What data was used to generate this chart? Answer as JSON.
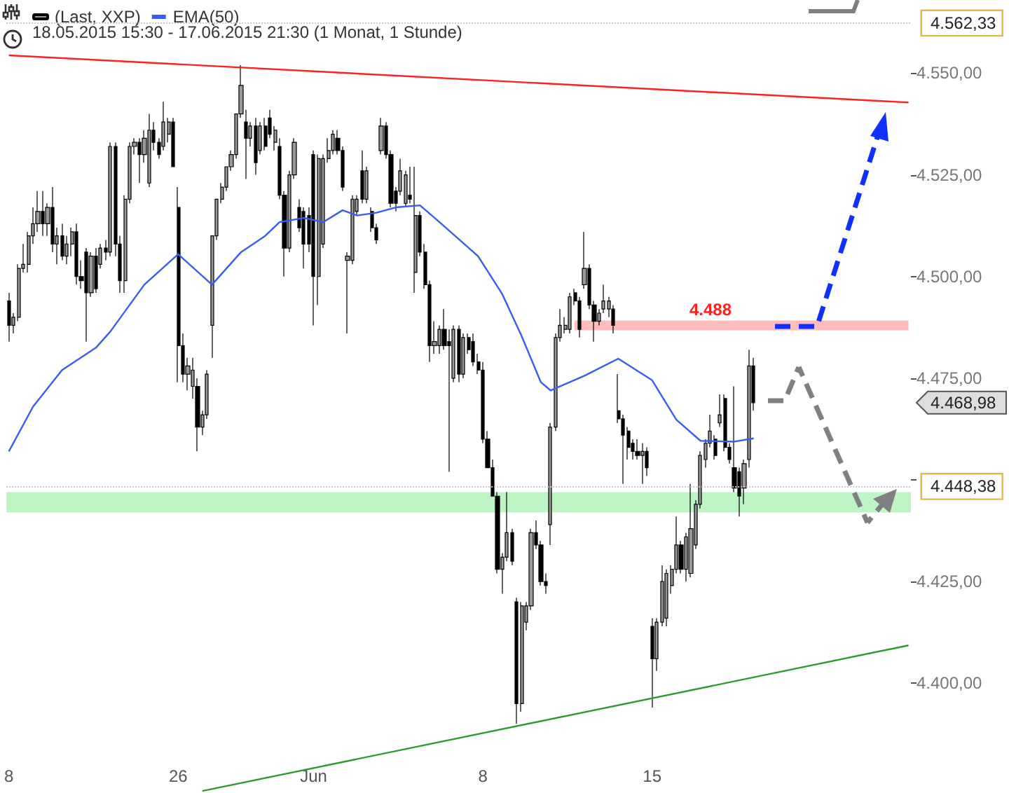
{
  "chart_data": {
    "type": "candlestick",
    "subtitle": "18.05.2015 15:30 - 17.06.2015 21:30 (1 Monat, 1 Stunde)",
    "categories": [
      "8",
      null,
      null,
      null,
      null,
      null,
      null,
      null,
      null,
      null,
      null,
      null,
      null,
      null,
      null,
      null,
      null,
      null,
      null,
      null,
      null,
      null,
      null,
      null,
      null,
      null,
      null,
      null,
      null,
      null,
      null,
      null,
      null,
      null,
      null,
      "26",
      null,
      null,
      null,
      null,
      null,
      null,
      null,
      null,
      null,
      null,
      null,
      null,
      null,
      null,
      null,
      null,
      null,
      null,
      null,
      null,
      null,
      null,
      null,
      null,
      null,
      null,
      null,
      "Jun",
      null,
      null,
      null,
      null,
      null,
      null,
      null,
      null,
      null,
      null,
      null,
      null,
      null,
      null,
      null,
      null,
      null,
      null,
      null,
      null,
      null,
      null,
      null,
      null,
      null,
      null,
      null,
      null,
      null,
      null,
      null,
      null,
      null,
      null,
      "8",
      null,
      null,
      null,
      null,
      null,
      null,
      null,
      null,
      null,
      null,
      null,
      null,
      null,
      null,
      null,
      null,
      null,
      null,
      null,
      null,
      null,
      null,
      null,
      null,
      null,
      null,
      null,
      null,
      null,
      null,
      null,
      null,
      null,
      null,
      "15",
      null,
      null,
      null,
      null,
      null,
      null,
      null,
      null,
      null,
      null,
      null,
      null,
      null,
      null,
      null,
      null,
      null,
      null,
      null,
      null,
      null,
      null,
      null,
      null,
      null,
      null,
      null,
      null,
      null,
      null,
      null,
      null,
      null,
      null,
      null,
      null,
      null,
      null,
      null,
      null,
      null,
      null,
      null,
      null,
      null,
      null,
      null,
      null,
      null,
      null,
      null,
      null,
      null
    ],
    "ylim": [
      4373,
      4568
    ],
    "yticks": [
      {
        "value": 4400,
        "label": "4.400,00"
      },
      {
        "value": 4425,
        "label": "4.425,00"
      },
      {
        "value": 4450,
        "label": null
      },
      {
        "value": 4475,
        "label": "4.475,00"
      },
      {
        "value": 4500,
        "label": "4.500,00"
      },
      {
        "value": 4525,
        "label": "4.525,00"
      },
      {
        "value": 4550,
        "label": "4.550,00"
      }
    ],
    "grid": false,
    "legend": "top left",
    "marker": "none",
    "series": [
      {
        "name": "(Last, XXP)",
        "color": "#000000",
        "ohlc": [
          [
            4494,
            4496,
            4484,
            4488
          ],
          [
            4488,
            4491,
            4486,
            4490
          ],
          [
            4490,
            4503,
            4489,
            4502
          ],
          [
            4502,
            4508,
            4501,
            4503
          ],
          [
            4503,
            4511,
            4501,
            4510
          ],
          [
            4510,
            4517,
            4508,
            4513
          ],
          [
            4513,
            4521,
            4511,
            4516
          ],
          [
            4516,
            4521,
            4510,
            4513
          ],
          [
            4513,
            4518,
            4510,
            4517
          ],
          [
            4517,
            4522,
            4506,
            4508
          ],
          [
            4508,
            4512,
            4503,
            4510
          ],
          [
            4510,
            4513,
            4504,
            4505
          ],
          [
            4505,
            4510,
            4503,
            4508
          ],
          [
            4508,
            4512,
            4505,
            4511
          ],
          [
            4511,
            4513,
            4498,
            4500
          ],
          [
            4500,
            4504,
            4497,
            4499
          ],
          [
            4506,
            4507,
            4484,
            4496
          ],
          [
            4496,
            4506,
            4495,
            4505
          ],
          [
            4505,
            4507,
            4496,
            4497
          ],
          [
            4503,
            4508,
            4502,
            4507
          ],
          [
            4507,
            4509,
            4504,
            4506
          ],
          [
            4506,
            4533,
            4505,
            4532
          ],
          [
            4532,
            4533,
            4505,
            4508
          ],
          [
            4508,
            4510,
            4496,
            4499
          ],
          [
            4499,
            4520,
            4496,
            4519
          ],
          [
            4519,
            4533,
            4518,
            4532
          ],
          [
            4532,
            4534,
            4530,
            4533
          ],
          [
            4533,
            4534,
            4523,
            4530
          ],
          [
            4530,
            4536,
            4528,
            4534
          ],
          [
            4523,
            4540,
            4522,
            4536
          ],
          [
            4536,
            4538,
            4531,
            4533
          ],
          [
            4533,
            4534,
            4529,
            4530
          ],
          [
            4532,
            4543,
            4531,
            4538
          ],
          [
            4535,
            4539,
            4533,
            4538
          ],
          [
            4538,
            4539,
            4527,
            4527
          ],
          [
            4517,
            4522,
            4474,
            4483
          ],
          [
            4483,
            4486,
            4474,
            4476
          ],
          [
            4476,
            4480,
            4472,
            4478
          ],
          [
            4473,
            4480,
            4470,
            4477
          ],
          [
            4473,
            4475,
            4457,
            4463
          ],
          [
            4463,
            4467,
            4461,
            4466
          ],
          [
            4466,
            4477,
            4465,
            4476
          ],
          [
            4488,
            4510,
            4480,
            4510
          ],
          [
            4510,
            4519,
            4509,
            4519
          ],
          [
            4519,
            4523,
            4518,
            4522
          ],
          [
            4522,
            4527,
            4521,
            4527
          ],
          [
            4527,
            4531,
            4526,
            4530
          ],
          [
            4530,
            4540,
            4529,
            4540
          ],
          [
            4540,
            4552,
            4539,
            4547
          ],
          [
            4538,
            4541,
            4524,
            4534
          ],
          [
            4534,
            4538,
            4532,
            4537
          ],
          [
            4537,
            4539,
            4525,
            4528
          ],
          [
            4531,
            4538,
            4530,
            4537
          ],
          [
            4537,
            4539,
            4531,
            4532
          ],
          [
            4539,
            4541,
            4534,
            4535
          ],
          [
            4533,
            4537,
            4531,
            4536
          ],
          [
            4532,
            4534,
            4519,
            4520
          ],
          [
            4520,
            4521,
            4500,
            4507
          ],
          [
            4507,
            4526,
            4506,
            4525
          ],
          [
            4525,
            4534,
            4524,
            4533
          ],
          [
            4517,
            4519,
            4511,
            4512
          ],
          [
            4516,
            4517,
            4502,
            4508
          ],
          [
            4515,
            4517,
            4506,
            4508
          ],
          [
            4530,
            4531,
            4488,
            4500
          ],
          [
            4500,
            4530,
            4493,
            4529
          ],
          [
            4508,
            4530,
            4507,
            4529
          ],
          [
            4529,
            4534,
            4528,
            4531
          ],
          [
            4531,
            4536,
            4530,
            4535
          ],
          [
            4534,
            4536,
            4530,
            4531
          ],
          [
            4531,
            4532,
            4521,
            4522
          ],
          [
            4504,
            4506,
            4486,
            4505
          ],
          [
            4504,
            4520,
            4503,
            4519
          ],
          [
            4516,
            4520,
            4515,
            4519
          ],
          [
            4526,
            4531,
            4518,
            4519
          ],
          [
            4519,
            4527,
            4518,
            4526
          ],
          [
            4516,
            4517,
            4511,
            4512
          ],
          [
            4512,
            4513,
            4508,
            4509
          ],
          [
            4531,
            4539,
            4530,
            4537
          ],
          [
            4537,
            4538,
            4529,
            4530
          ],
          [
            4530,
            4531,
            4517,
            4518
          ],
          [
            4521,
            4522,
            4516,
            4518
          ],
          [
            4521,
            4529,
            4520,
            4526
          ],
          [
            4518,
            4526,
            4517,
            4525
          ],
          [
            4520,
            4527,
            4518,
            4519
          ],
          [
            4501,
            4527,
            4496,
            4515
          ],
          [
            4515,
            4516,
            4505,
            4506
          ],
          [
            4506,
            4508,
            4497,
            4498
          ],
          [
            4498,
            4499,
            4479,
            4483
          ],
          [
            4483,
            4489,
            4481,
            4484
          ],
          [
            4483,
            4488,
            4481,
            4487
          ],
          [
            4487,
            4492,
            4482,
            4483
          ],
          [
            4484,
            4487,
            4452,
            4483
          ],
          [
            4475,
            4488,
            4474,
            4487
          ],
          [
            4487,
            4488,
            4474,
            4476
          ],
          [
            4476,
            4486,
            4475,
            4485
          ],
          [
            4485,
            4486,
            4481,
            4482
          ],
          [
            4484,
            4486,
            4478,
            4479
          ],
          [
            4479,
            4481,
            4476,
            4477
          ],
          [
            4477,
            4479,
            4459,
            4460
          ],
          [
            4460,
            4462,
            4453,
            4453
          ],
          [
            4453,
            4455,
            4446,
            4446
          ],
          [
            4446,
            4447,
            4427,
            4428
          ],
          [
            4428,
            4432,
            4422,
            4431
          ],
          [
            4431,
            4447,
            4430,
            4437
          ],
          [
            4437,
            4438,
            4429,
            4430
          ],
          [
            4420,
            4421,
            4390,
            4395
          ],
          [
            4395,
            4420,
            4393,
            4419
          ],
          [
            4415,
            4420,
            4413,
            4419
          ],
          [
            4419,
            4438,
            4418,
            4437
          ],
          [
            4437,
            4440,
            4433,
            4434
          ],
          [
            4434,
            4435,
            4424,
            4425
          ],
          [
            4425,
            4427,
            4422,
            4424
          ],
          [
            4439,
            4464,
            4434,
            4463
          ],
          [
            4463,
            4486,
            4462,
            4485
          ],
          [
            4485,
            4492,
            4484,
            4488
          ],
          [
            4487,
            4490,
            4486,
            4488
          ],
          [
            4487,
            4496,
            4486,
            4495
          ],
          [
            4496,
            4497,
            4493,
            4494
          ],
          [
            4494,
            4495,
            4485,
            4487
          ],
          [
            4498,
            4511,
            4497,
            4502
          ],
          [
            4502,
            4503,
            4492,
            4493
          ],
          [
            4493,
            4494,
            4484,
            4489
          ],
          [
            4489,
            4492,
            4488,
            4491
          ],
          [
            4492,
            4498,
            4491,
            4494
          ],
          [
            4492,
            4495,
            4490,
            4494
          ],
          [
            4492,
            4493,
            4486,
            4488
          ],
          [
            4467,
            4476,
            4464,
            4465
          ],
          [
            4465,
            4466,
            4449,
            4461
          ],
          [
            4462,
            4463,
            4455,
            4458
          ],
          [
            4459,
            4460,
            4455,
            4457
          ],
          [
            4457,
            4460,
            4455,
            4456
          ],
          [
            4456,
            4459,
            4449,
            4457
          ],
          [
            4457,
            4458,
            4451,
            4453
          ],
          [
            4414,
            4416,
            4394,
            4406
          ],
          [
            4406,
            4416,
            4403,
            4415
          ],
          [
            4415,
            4429,
            4414,
            4425
          ],
          [
            4416,
            4428,
            4414,
            4427
          ],
          [
            4424,
            4429,
            4422,
            4428
          ],
          [
            4428,
            4441,
            4427,
            4434
          ],
          [
            4434,
            4435,
            4427,
            4428
          ],
          [
            4428,
            4437,
            4425,
            4436
          ],
          [
            4427,
            4449,
            4426,
            4438
          ],
          [
            4434,
            4445,
            4433,
            4444
          ],
          [
            4444,
            4457,
            4443,
            4456
          ],
          [
            4455,
            4460,
            4453,
            4459
          ],
          [
            4459,
            4466,
            4458,
            4462
          ],
          [
            4460,
            4461,
            4455,
            4456
          ],
          [
            4464,
            4471,
            4463,
            4466
          ],
          [
            4470,
            4471,
            4457,
            4458
          ],
          [
            4458,
            4459,
            4454,
            4455
          ],
          [
            4453,
            4473,
            4447,
            4448
          ],
          [
            4452,
            4453,
            4441,
            4446
          ],
          [
            4448,
            4455,
            4444,
            4454
          ],
          [
            4455,
            4482,
            4453,
            4478
          ],
          [
            4478,
            4480,
            4467,
            4468.98
          ],
          null,
          null,
          null,
          null,
          null,
          null,
          null,
          null,
          null,
          null,
          null,
          null,
          null,
          null,
          null,
          null,
          null,
          null,
          null,
          null,
          null,
          null,
          null,
          null,
          null,
          null,
          null,
          null,
          null,
          null,
          null,
          null
        ]
      },
      {
        "name": "EMA(50)",
        "type": "line",
        "color": "#3a5cf0",
        "values": [
          4457,
          null,
          null,
          null,
          null,
          4468,
          null,
          null,
          null,
          null,
          null,
          4477,
          null,
          null,
          null,
          null,
          null,
          null,
          4482.5,
          null,
          null,
          4486.5,
          null,
          null,
          null,
          null,
          null,
          null,
          4498,
          null,
          null,
          null,
          null,
          null,
          null,
          4505.5,
          null,
          null,
          null,
          null,
          null,
          null,
          4498,
          null,
          null,
          null,
          null,
          null,
          4506,
          null,
          null,
          null,
          null,
          4510,
          null,
          null,
          4513.4,
          null,
          null,
          null,
          null,
          4514.4,
          null,
          null,
          null,
          4513.4,
          null,
          null,
          null,
          4516.3,
          null,
          null,
          4515,
          null,
          null,
          null,
          4515.7,
          null,
          null,
          null,
          4517,
          null,
          null,
          null,
          null,
          4517.5,
          null,
          null,
          null,
          4513.4,
          null,
          null,
          null,
          null,
          null,
          null,
          null,
          4505,
          null,
          null,
          null,
          null,
          4495.7,
          null,
          null,
          null,
          4485.4,
          null,
          null,
          null,
          4474,
          null,
          4472,
          null,
          null,
          null,
          null,
          null,
          null,
          4475.6,
          null,
          null,
          null,
          null,
          null,
          null,
          4479.8,
          null,
          null,
          null,
          null,
          null,
          null,
          4474.5,
          null,
          null,
          null,
          null,
          4464.8,
          null,
          null,
          null,
          null,
          4459.6,
          null,
          null,
          null,
          null,
          null,
          null,
          4459.4,
          null,
          null,
          null,
          4460.2,
          null,
          null,
          null,
          null,
          null,
          null,
          null,
          null,
          null,
          null,
          null,
          null,
          null,
          null,
          null,
          null,
          null,
          null,
          null,
          null,
          null,
          null,
          null,
          null,
          null,
          null,
          null,
          null,
          null,
          null,
          null,
          null
        ]
      },
      {
        "type": "line",
        "color": "#ff2020",
        "values": [
          4554.4,
          null,
          null,
          null,
          null,
          null,
          null,
          null,
          null,
          null,
          null,
          null,
          null,
          null,
          null,
          null,
          null,
          null,
          null,
          null,
          null,
          null,
          null,
          null,
          null,
          null,
          null,
          null,
          null,
          null,
          null,
          null,
          null,
          null,
          null,
          null,
          null,
          null,
          null,
          null,
          null,
          null,
          null,
          null,
          null,
          null,
          null,
          null,
          null,
          null,
          null,
          null,
          null,
          null,
          null,
          null,
          null,
          null,
          null,
          null,
          null,
          null,
          null,
          null,
          null,
          null,
          null,
          null,
          null,
          null,
          null,
          null,
          null,
          null,
          null,
          null,
          null,
          null,
          null,
          null,
          null,
          null,
          null,
          null,
          null,
          null,
          null,
          null,
          null,
          null,
          null,
          null,
          null,
          null,
          null,
          null,
          null,
          null,
          null,
          null,
          null,
          null,
          null,
          null,
          null,
          null,
          null,
          null,
          null,
          null,
          null,
          null,
          null,
          null,
          null,
          null,
          null,
          null,
          null,
          null,
          null,
          null,
          null,
          null,
          null,
          null,
          null,
          null,
          null,
          null,
          null,
          null,
          null,
          null,
          null,
          null,
          null,
          null,
          null,
          null,
          null,
          null,
          null,
          null,
          null,
          null,
          null,
          null,
          null,
          null,
          null,
          null,
          null,
          null,
          null,
          null,
          null,
          null,
          null,
          null,
          null,
          null,
          null,
          null,
          null,
          null,
          null,
          null,
          null,
          null,
          null,
          null,
          null,
          null,
          null,
          null,
          null,
          null,
          null,
          null,
          null,
          null,
          null,
          null,
          null,
          null,
          4542.8
        ]
      },
      {
        "type": "line",
        "color": "#2e9a2e",
        "values": [
          null,
          null,
          null,
          null,
          null,
          null,
          null,
          null,
          null,
          null,
          null,
          null,
          null,
          null,
          null,
          null,
          null,
          null,
          null,
          null,
          null,
          null,
          null,
          null,
          null,
          null,
          null,
          null,
          null,
          null,
          null,
          null,
          null,
          null,
          null,
          null,
          null,
          null,
          null,
          null,
          4373.5,
          null,
          null,
          null,
          null,
          null,
          null,
          null,
          null,
          null,
          null,
          null,
          null,
          null,
          null,
          null,
          null,
          null,
          null,
          null,
          null,
          null,
          null,
          null,
          null,
          null,
          null,
          null,
          null,
          null,
          null,
          null,
          null,
          null,
          null,
          null,
          null,
          null,
          null,
          null,
          null,
          null,
          null,
          null,
          null,
          null,
          null,
          null,
          null,
          null,
          null,
          null,
          null,
          null,
          null,
          null,
          null,
          null,
          null,
          null,
          null,
          null,
          null,
          null,
          null,
          null,
          null,
          null,
          null,
          null,
          null,
          null,
          null,
          null,
          null,
          null,
          null,
          null,
          null,
          null,
          null,
          null,
          null,
          null,
          null,
          null,
          null,
          null,
          null,
          null,
          null,
          null,
          null,
          null,
          null,
          null,
          null,
          null,
          null,
          null,
          null,
          null,
          null,
          null,
          null,
          null,
          null,
          null,
          null,
          null,
          null,
          null,
          null,
          null,
          null,
          null,
          null,
          null,
          null,
          null,
          null,
          null,
          null,
          null,
          null,
          null,
          null,
          null,
          null,
          null,
          null,
          null,
          null,
          null,
          null,
          null,
          null,
          null,
          null,
          null,
          null,
          null,
          null,
          null,
          null,
          null,
          4409.3
        ]
      },
      {
        "type": "line",
        "color": "#ffbcbc",
        "values": [
          null,
          null,
          null,
          null,
          null,
          null,
          null,
          null,
          null,
          null,
          null,
          null,
          null,
          null,
          null,
          null,
          null,
          null,
          null,
          null,
          null,
          null,
          null,
          null,
          null,
          null,
          null,
          null,
          null,
          null,
          null,
          null,
          null,
          null,
          null,
          null,
          null,
          null,
          null,
          null,
          null,
          null,
          null,
          null,
          null,
          null,
          null,
          null,
          null,
          null,
          null,
          null,
          null,
          null,
          null,
          null,
          null,
          null,
          null,
          null,
          null,
          null,
          null,
          null,
          null,
          null,
          null,
          null,
          null,
          null,
          null,
          null,
          null,
          null,
          null,
          null,
          null,
          null,
          null,
          null,
          null,
          null,
          null,
          null,
          null,
          null,
          null,
          null,
          null,
          null,
          null,
          null,
          null,
          null,
          null,
          null,
          null,
          null,
          null,
          null,
          null,
          null,
          null,
          null,
          null,
          null,
          null,
          null,
          null,
          null,
          null,
          null,
          null,
          null,
          null,
          null,
          null,
          4488,
          null,
          null,
          null,
          null,
          null,
          null,
          null,
          null,
          null,
          null,
          null,
          null,
          null,
          null,
          null,
          null,
          null,
          null,
          null,
          null,
          null,
          null,
          null,
          null,
          null,
          null,
          null,
          null,
          null,
          null,
          null,
          null,
          null,
          null,
          null,
          null,
          null,
          null,
          null,
          null,
          null,
          null,
          null,
          null,
          null,
          null,
          null,
          null,
          null,
          null,
          null,
          null,
          null,
          null,
          null,
          null,
          null,
          null,
          null,
          null,
          null,
          null,
          null,
          null,
          null,
          null,
          null,
          null,
          4488
        ]
      }
    ],
    "ref_lines": [
      {
        "axis": "y",
        "value": 4562.33,
        "label": "4.562,33",
        "color": "#c8c8c8",
        "line_style": "dotted"
      },
      {
        "axis": "y",
        "value": 4448.38,
        "label": "4.448,38",
        "color": "#c8c8c8",
        "line_style": "dotted"
      }
    ],
    "bands": [
      {
        "axis": "y",
        "from": 4442,
        "to": 4447,
        "color": "#bff5c4"
      }
    ],
    "annotations": [
      "4.488",
      "4.468,98"
    ]
  }
}
